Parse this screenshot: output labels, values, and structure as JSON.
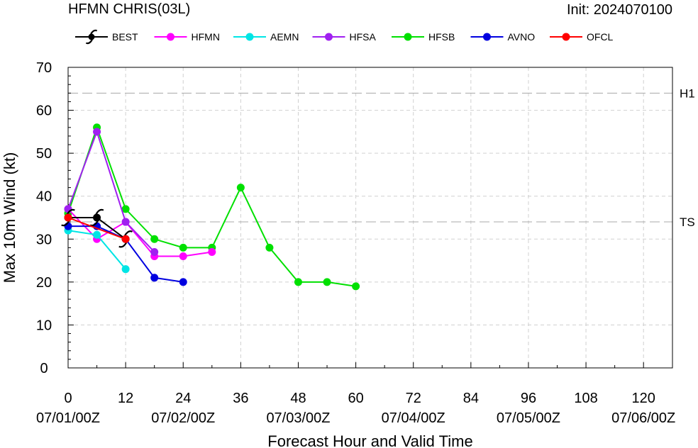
{
  "header": {
    "left_title": "HFMN CHRIS(03L)",
    "right_title": "Init: 2024070100"
  },
  "chart_data": {
    "type": "line",
    "xlabel": "Forecast Hour and Valid Time",
    "ylabel": "Max 10m Wind (kt)",
    "xlim": [
      0,
      126
    ],
    "ylim": [
      0,
      70
    ],
    "x_ticks": [
      0,
      12,
      24,
      36,
      48,
      60,
      72,
      84,
      96,
      108,
      120
    ],
    "x_ticks_minor": [
      6,
      18,
      30,
      42,
      54,
      66,
      78,
      90,
      102,
      114
    ],
    "y_ticks": [
      0,
      10,
      20,
      30,
      40,
      50,
      60,
      70
    ],
    "valid_time_labels": [
      {
        "x": 0,
        "label": "07/01/00Z"
      },
      {
        "x": 24,
        "label": "07/02/00Z"
      },
      {
        "x": 48,
        "label": "07/03/00Z"
      },
      {
        "x": 72,
        "label": "07/04/00Z"
      },
      {
        "x": 96,
        "label": "07/05/00Z"
      },
      {
        "x": 120,
        "label": "07/06/00Z"
      }
    ],
    "grid": true,
    "legend_position": "top",
    "reference_lines": [
      {
        "label": "H1",
        "y": 64
      },
      {
        "label": "TS",
        "y": 34
      }
    ],
    "series": [
      {
        "name": "BEST",
        "color": "#000000",
        "marker": "hurricane-symbol",
        "x": [
          0,
          6,
          12
        ],
        "y": [
          35,
          35,
          30
        ]
      },
      {
        "name": "HFMN",
        "color": "#ff00ff",
        "x": [
          0,
          6,
          12,
          18,
          24,
          30
        ],
        "y": [
          37,
          30,
          34,
          26,
          26,
          27
        ]
      },
      {
        "name": "AEMN",
        "color": "#00e5e5",
        "x": [
          0,
          6,
          12
        ],
        "y": [
          32,
          31,
          23
        ]
      },
      {
        "name": "HFSA",
        "color": "#a020f0",
        "x": [
          0,
          6,
          12,
          18
        ],
        "y": [
          37,
          55,
          34,
          27
        ]
      },
      {
        "name": "HFSB",
        "color": "#00e000",
        "x": [
          0,
          6,
          12,
          18,
          24,
          30,
          36,
          42,
          48,
          54,
          60
        ],
        "y": [
          36,
          56,
          37,
          30,
          28,
          28,
          42,
          28,
          20,
          20,
          19
        ]
      },
      {
        "name": "AVNO",
        "color": "#0000e0",
        "x": [
          0,
          6,
          12,
          18,
          24
        ],
        "y": [
          33,
          33,
          30,
          21,
          20
        ]
      },
      {
        "name": "OFCL",
        "color": "#ff0000",
        "x": [
          0,
          12
        ],
        "y": [
          35,
          30
        ]
      }
    ]
  }
}
